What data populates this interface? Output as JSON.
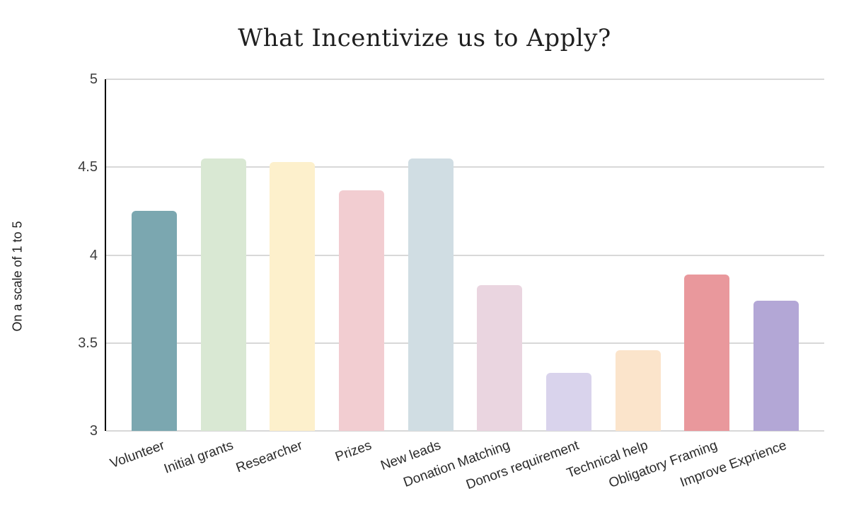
{
  "chart_data": {
    "type": "bar",
    "title": "What Incentivize us to Apply?",
    "xlabel": "",
    "ylabel": "On a scale of 1 to 5",
    "ylim": [
      3,
      5
    ],
    "yticks": [
      3,
      3.5,
      4,
      4.5,
      5
    ],
    "grid": "horizontal",
    "legend": "none",
    "categories": [
      "Volunteer",
      "Initial grants",
      "Researcher",
      "Prizes",
      "New leads",
      "Donation Matching",
      "Donors requirement",
      "Technical help",
      "Obligatory Framing",
      "Improve Exprience"
    ],
    "values": [
      4.25,
      4.55,
      4.53,
      4.37,
      4.55,
      3.83,
      3.33,
      3.46,
      3.89,
      3.74
    ],
    "bar_colors": [
      "#7ba7b0",
      "#d9e8d3",
      "#fdf0cc",
      "#f2cdd1",
      "#d0dde3",
      "#ead5e0",
      "#d9d3ec",
      "#fbe4cb",
      "#e9989c",
      "#b3a7d6"
    ],
    "gridline_color": "#d8d8d8",
    "axis_color": "#000000",
    "background_color": "#ffffff",
    "text_color": "#1f1f1f"
  }
}
